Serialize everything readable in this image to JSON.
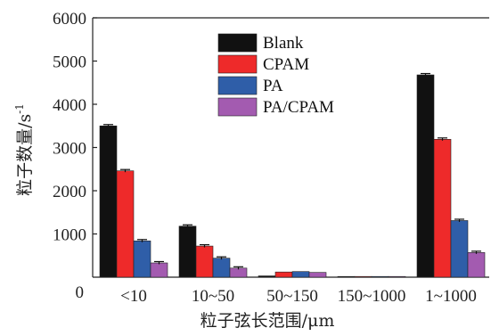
{
  "chart_data": {
    "type": "bar",
    "categories": [
      "<10",
      "10~50",
      "50~150",
      "150~1000",
      "1~1000"
    ],
    "series": [
      {
        "name": "Blank",
        "color": "#111111",
        "values": [
          3500,
          1180,
          30,
          10,
          4680
        ]
      },
      {
        "name": "CPAM",
        "color": "#ee2a2a",
        "values": [
          2460,
          720,
          120,
          5,
          3190
        ]
      },
      {
        "name": "PA",
        "color": "#2f5ea8",
        "values": [
          840,
          440,
          130,
          5,
          1310
        ]
      },
      {
        "name": "PA/CPAM",
        "color": "#a35bb0",
        "values": [
          330,
          210,
          110,
          5,
          570
        ]
      }
    ],
    "error_bars": true,
    "ylim": [
      0,
      6000
    ],
    "yticks": [
      "0",
      "1000",
      "2000",
      "3000",
      "4000",
      "5000",
      "6000"
    ],
    "xlabel": "粒子弦长范围/μm",
    "ylabel": "粒子数量/s",
    "ylabel_superscript": "-1",
    "legend_position": "top-center"
  }
}
